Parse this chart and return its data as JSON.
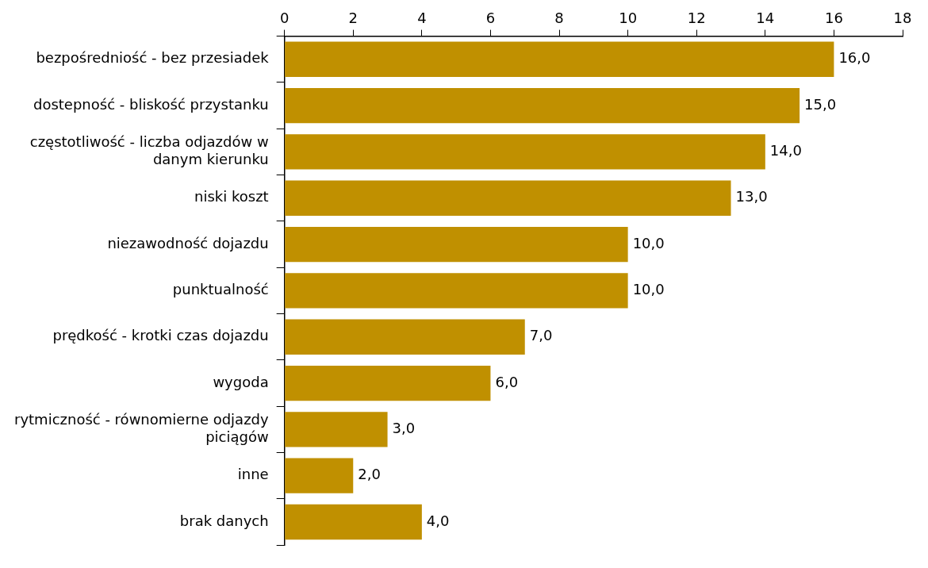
{
  "chart_data": {
    "type": "bar",
    "orientation": "horizontal",
    "categories": [
      "bezpośredniość - bez przesiadek",
      "dostepność - bliskość przystanku",
      "częstotliwość - liczba odjazdów w danym kierunku",
      "niski koszt",
      "niezawodność dojazdu",
      "punktualność",
      "prędkość - krotki czas dojazdu",
      "wygoda",
      "rytmiczność - równomierne odjazdy piciągów",
      "inne",
      "brak danych"
    ],
    "values": [
      16,
      15,
      14,
      13,
      10,
      10,
      7,
      6,
      3,
      2,
      4
    ],
    "value_labels": [
      "16,0",
      "15,0",
      "14,0",
      "13,0",
      "10,0",
      "10,0",
      "7,0",
      "6,0",
      "3,0",
      "2,0",
      "4,0"
    ],
    "color": "#c09000",
    "xlim": [
      0,
      18
    ],
    "xticks": [
      0,
      2,
      4,
      6,
      8,
      10,
      12,
      14,
      16,
      18
    ],
    "grid": false,
    "legend": false
  }
}
